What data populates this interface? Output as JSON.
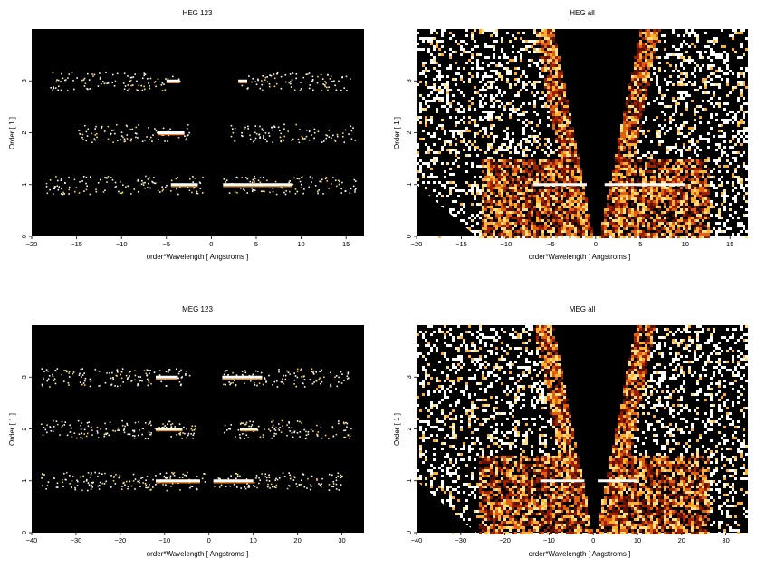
{
  "chart_data": [
    {
      "type": "heatmap",
      "title": "HEG 123",
      "xlabel": "order*Wavelength [ Angstroms ]",
      "ylabel": "Order [ 1 ]",
      "xlim": [
        -20,
        17
      ],
      "ylim": [
        0,
        4
      ],
      "xticks": [
        -20,
        -15,
        -10,
        -5,
        0,
        5,
        10,
        15
      ],
      "yticks": [
        0,
        1,
        2,
        3
      ],
      "order_bands": [
        {
          "order": 1,
          "x_ranges": [
            [
              -18.5,
              -1
            ],
            [
              1.3,
              16
            ]
          ],
          "bright_lines": [
            [
              -4.5,
              -1.5
            ],
            [
              1.3,
              9
            ]
          ]
        },
        {
          "order": 2,
          "x_ranges": [
            [
              -15,
              -2.5
            ],
            [
              2,
              16
            ]
          ],
          "bright_lines": [
            [
              -6,
              -3
            ]
          ]
        },
        {
          "order": 3,
          "x_ranges": [
            [
              -18,
              -3.5
            ],
            [
              3,
              15.5
            ]
          ],
          "bright_lines": [
            [
              -5,
              -3.5
            ],
            [
              3,
              4
            ]
          ]
        }
      ],
      "colormap": "black-red-yellow-white",
      "background": "black"
    },
    {
      "type": "heatmap",
      "title": "HEG all",
      "xlabel": "order*Wavelength [ Angstroms ]",
      "ylabel": "Order [ 1 ]",
      "xlim": [
        -20,
        17
      ],
      "ylim": [
        0,
        4
      ],
      "xticks": [
        -20,
        -15,
        -10,
        -5,
        0,
        5,
        10,
        15
      ],
      "yticks": [
        0,
        1,
        2,
        3
      ],
      "order_bands": [
        {
          "order": 1,
          "bright_lines": [
            [
              -7,
              -1
            ],
            [
              1,
              10
            ]
          ]
        }
      ],
      "colormap": "black-red-yellow-white",
      "background": "black"
    },
    {
      "type": "heatmap",
      "title": "MEG 123",
      "xlabel": "order*Wavelength [ Angstroms ]",
      "ylabel": "Order [ 1 ]",
      "xlim": [
        -40,
        35
      ],
      "ylim": [
        0,
        4
      ],
      "xticks": [
        -40,
        -30,
        -20,
        -10,
        0,
        10,
        20,
        30
      ],
      "yticks": [
        0,
        1,
        2,
        3
      ],
      "order_bands": [
        {
          "order": 1,
          "x_ranges": [
            [
              -38,
              -1
            ],
            [
              1,
              30
            ]
          ],
          "bright_lines": [
            [
              -12,
              -2
            ],
            [
              1,
              10
            ]
          ]
        },
        {
          "order": 2,
          "x_ranges": [
            [
              -38,
              -3
            ],
            [
              3,
              32
            ]
          ],
          "bright_lines": [
            [
              -12,
              -6
            ],
            [
              7,
              11
            ]
          ]
        },
        {
          "order": 3,
          "x_ranges": [
            [
              -38,
              -4
            ],
            [
              3,
              32
            ]
          ],
          "bright_lines": [
            [
              -12,
              -7
            ],
            [
              3,
              12
            ]
          ]
        }
      ],
      "colormap": "black-red-yellow-white",
      "background": "black"
    },
    {
      "type": "heatmap",
      "title": "MEG all",
      "xlabel": "order*Wavelength [ Angstroms ]",
      "ylabel": "Order [ 1 ]",
      "xlim": [
        -40,
        35
      ],
      "ylim": [
        0,
        4
      ],
      "xticks": [
        -40,
        -30,
        -20,
        -10,
        0,
        10,
        20,
        30
      ],
      "yticks": [
        0,
        1,
        2,
        3
      ],
      "order_bands": [
        {
          "order": 1,
          "bright_lines": [
            [
              -12,
              -2
            ],
            [
              1,
              10
            ]
          ]
        }
      ],
      "colormap": "black-red-yellow-white",
      "background": "black"
    }
  ]
}
